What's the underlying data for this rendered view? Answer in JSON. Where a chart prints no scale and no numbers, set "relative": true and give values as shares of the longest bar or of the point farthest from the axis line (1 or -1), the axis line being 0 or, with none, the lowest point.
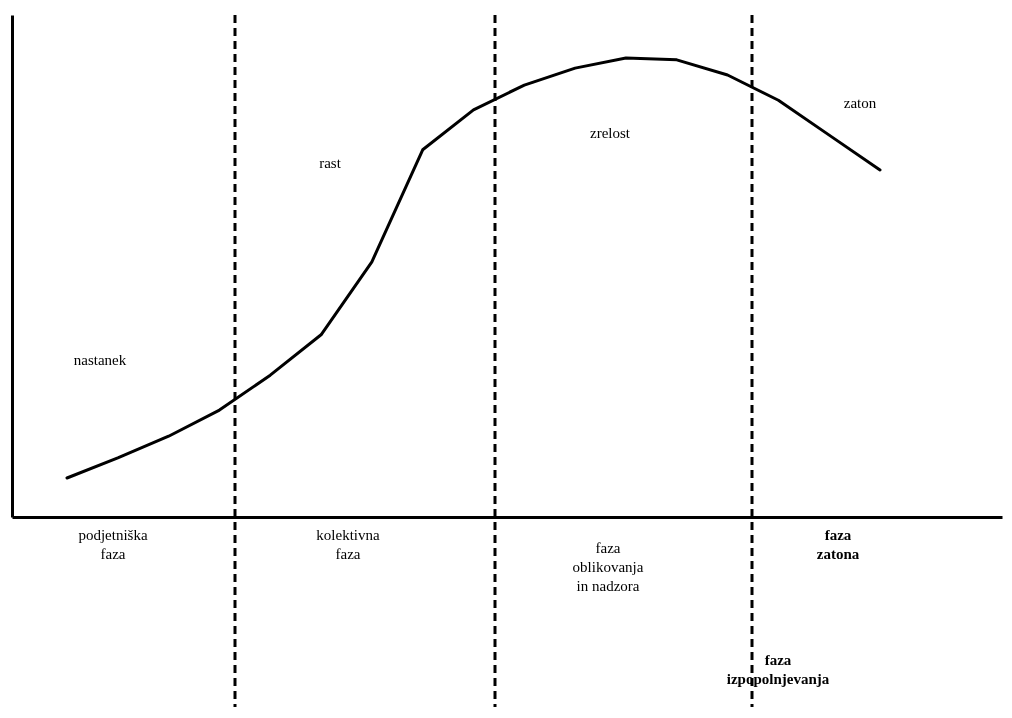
{
  "chart_data": {
    "type": "line",
    "relative": true,
    "line_style": "solid",
    "categories": [
      null,
      null,
      null,
      null,
      null,
      null,
      null,
      null,
      null,
      null,
      null,
      null,
      null,
      null,
      null,
      null,
      null
    ],
    "series": [
      {
        "color": "#000000",
        "values": [
          0.085,
          0.129,
          0.176,
          0.233,
          0.309,
          0.397,
          0.556,
          0.8,
          0.887,
          0.941,
          0.978,
          1,
          0.996,
          0.963,
          0.908,
          0.832,
          0.756
        ]
      }
    ],
    "annotations": [
      "nastanek",
      "rast",
      "zrelost",
      "zaton",
      "podjetniška\nfaza",
      "kolektivna\nfaza",
      "faza\noblikovanja\nin nadzora",
      "faza\nzatona",
      "faza\nizpopolnjevanja"
    ]
  }
}
